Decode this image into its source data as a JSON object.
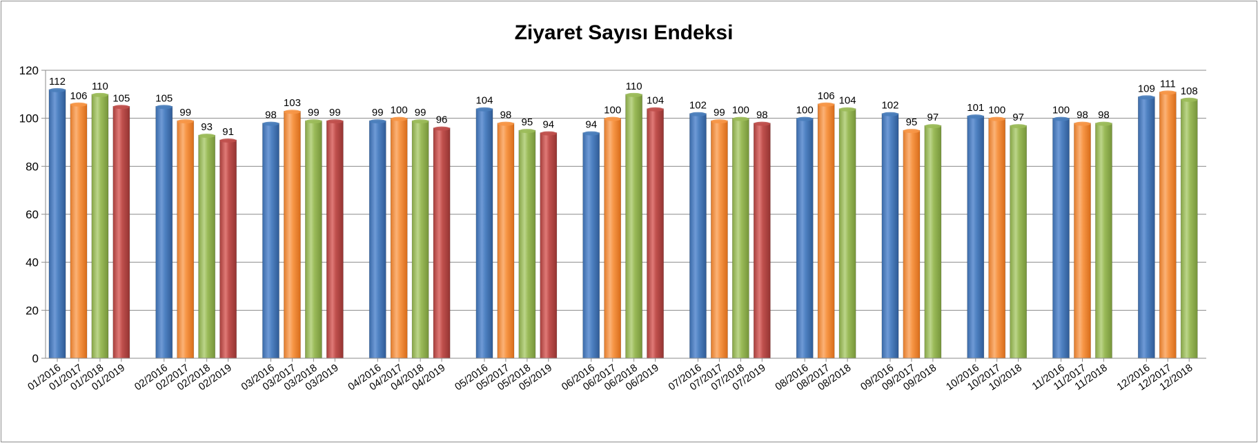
{
  "chart_data": {
    "type": "bar",
    "title": "Ziyaret Sayısı Endeksi",
    "ylim": [
      0,
      120
    ],
    "yticks": [
      0,
      20,
      40,
      60,
      80,
      100,
      120
    ],
    "grid": true,
    "colors": {
      "2016": "#4a7ebb",
      "2017": "#f79646",
      "2018": "#9bbb59",
      "2019": "#c0504d"
    },
    "groups": [
      {
        "bars": [
          {
            "x": "01/2016",
            "year": "2016",
            "value": 112
          },
          {
            "x": "01/2017",
            "year": "2017",
            "value": 106
          },
          {
            "x": "01/2018",
            "year": "2018",
            "value": 110
          },
          {
            "x": "01/2019",
            "year": "2019",
            "value": 105
          }
        ]
      },
      {
        "bars": [
          {
            "x": "02/2016",
            "year": "2016",
            "value": 105
          },
          {
            "x": "02/2017",
            "year": "2017",
            "value": 99
          },
          {
            "x": "02/2018",
            "year": "2018",
            "value": 93
          },
          {
            "x": "02/2019",
            "year": "2019",
            "value": 91
          }
        ]
      },
      {
        "bars": [
          {
            "x": "03/2016",
            "year": "2016",
            "value": 98
          },
          {
            "x": "03/2017",
            "year": "2017",
            "value": 103
          },
          {
            "x": "03/2018",
            "year": "2018",
            "value": 99
          },
          {
            "x": "03/2019",
            "year": "2019",
            "value": 99
          }
        ]
      },
      {
        "bars": [
          {
            "x": "04/2016",
            "year": "2016",
            "value": 99
          },
          {
            "x": "04/2017",
            "year": "2017",
            "value": 100
          },
          {
            "x": "04/2018",
            "year": "2018",
            "value": 99
          },
          {
            "x": "04/2019",
            "year": "2019",
            "value": 96
          }
        ]
      },
      {
        "bars": [
          {
            "x": "05/2016",
            "year": "2016",
            "value": 104
          },
          {
            "x": "05/2017",
            "year": "2017",
            "value": 98
          },
          {
            "x": "05/2018",
            "year": "2018",
            "value": 95
          },
          {
            "x": "05/2019",
            "year": "2019",
            "value": 94
          }
        ]
      },
      {
        "bars": [
          {
            "x": "06/2016",
            "year": "2016",
            "value": 94
          },
          {
            "x": "06/2017",
            "year": "2017",
            "value": 100
          },
          {
            "x": "06/2018",
            "year": "2018",
            "value": 110
          },
          {
            "x": "06/2019",
            "year": "2019",
            "value": 104
          }
        ]
      },
      {
        "bars": [
          {
            "x": "07/2016",
            "year": "2016",
            "value": 102
          },
          {
            "x": "07/2017",
            "year": "2017",
            "value": 99
          },
          {
            "x": "07/2018",
            "year": "2018",
            "value": 100
          },
          {
            "x": "07/2019",
            "year": "2019",
            "value": 98
          }
        ]
      },
      {
        "bars": [
          {
            "x": "08/2016",
            "year": "2016",
            "value": 100
          },
          {
            "x": "08/2017",
            "year": "2017",
            "value": 106
          },
          {
            "x": "08/2018",
            "year": "2018",
            "value": 104
          }
        ]
      },
      {
        "bars": [
          {
            "x": "09/2016",
            "year": "2016",
            "value": 102
          },
          {
            "x": "09/2017",
            "year": "2017",
            "value": 95
          },
          {
            "x": "09/2018",
            "year": "2018",
            "value": 97
          }
        ]
      },
      {
        "bars": [
          {
            "x": "10/2016",
            "year": "2016",
            "value": 101
          },
          {
            "x": "10/2017",
            "year": "2017",
            "value": 100
          },
          {
            "x": "10/2018",
            "year": "2018",
            "value": 97
          }
        ]
      },
      {
        "bars": [
          {
            "x": "11/2016",
            "year": "2016",
            "value": 100
          },
          {
            "x": "11/2017",
            "year": "2017",
            "value": 98
          },
          {
            "x": "11/2018",
            "year": "2018",
            "value": 98
          }
        ]
      },
      {
        "bars": [
          {
            "x": "12/2016",
            "year": "2016",
            "value": 109
          },
          {
            "x": "12/2017",
            "year": "2017",
            "value": 111
          },
          {
            "x": "12/2018",
            "year": "2018",
            "value": 108
          }
        ]
      }
    ]
  }
}
